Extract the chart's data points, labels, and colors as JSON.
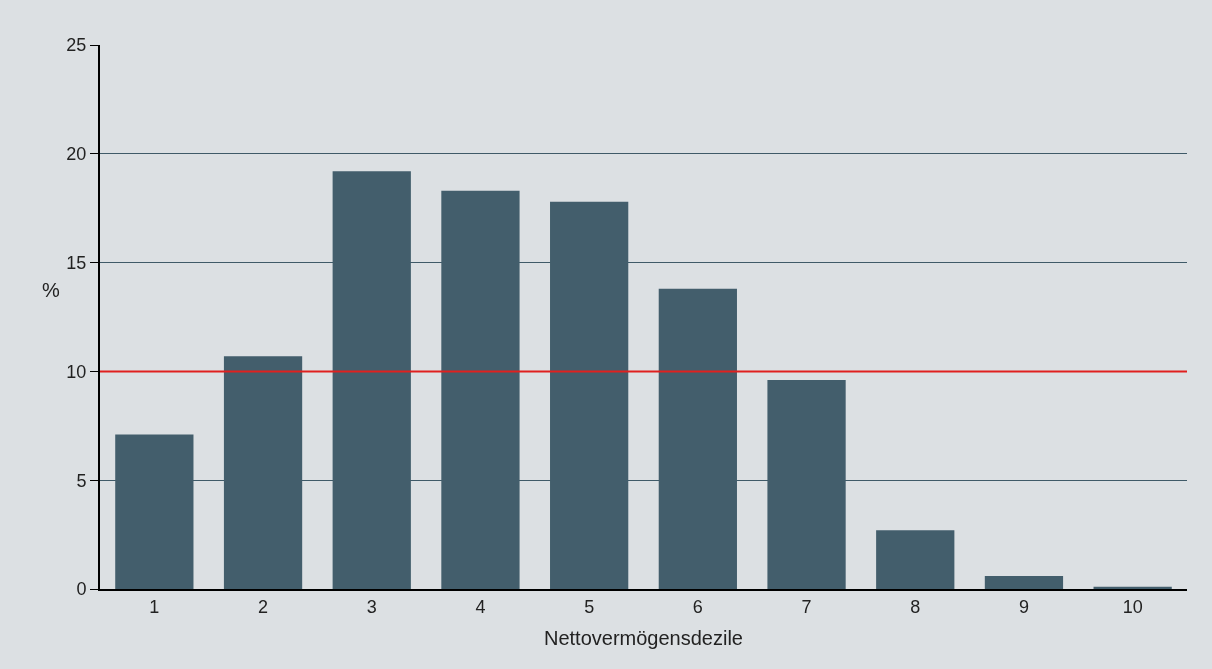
{
  "chart_data": {
    "type": "bar",
    "xlabel": "Nettovermögensdezile",
    "ylabel": "%",
    "categories": [
      "1",
      "2",
      "3",
      "4",
      "5",
      "6",
      "7",
      "8",
      "9",
      "10"
    ],
    "values": [
      7.1,
      10.7,
      19.2,
      18.3,
      17.8,
      13.8,
      9.6,
      2.7,
      0.6,
      0.1
    ],
    "color": "#435e6c",
    "ylim": [
      0,
      25
    ],
    "yticks": [
      0,
      5,
      10,
      15,
      20,
      25
    ],
    "grid": "y",
    "ref_lines": [
      {
        "axis": "y",
        "value": 10,
        "label": null,
        "color": "#e0201f"
      }
    ]
  }
}
